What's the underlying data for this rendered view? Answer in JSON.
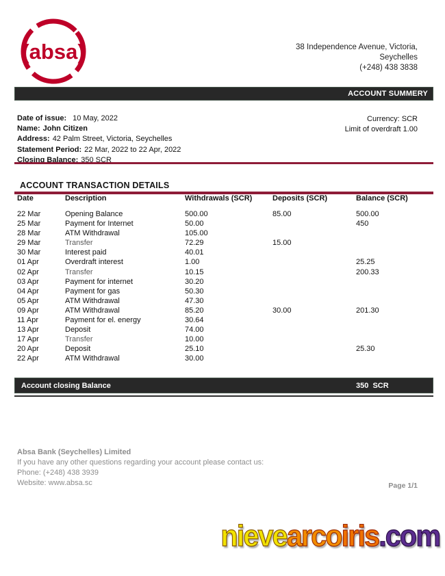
{
  "brand": {
    "logo_text": "(absa)",
    "logo_color": "#be0028"
  },
  "header": {
    "address_lines": [
      "38 Independence Avenue, Victoria,",
      "Seychelles",
      "(+248) 438 3838"
    ],
    "summary_bar_label": "ACCOUNT SUMMERY"
  },
  "summary": {
    "fields": [
      {
        "label": "Date of issue:",
        "value": "10 May, 2022",
        "bold_value": false,
        "wide_gap": true
      },
      {
        "label": "Name:",
        "value": "John Citizen",
        "bold_value": true,
        "wide_gap": false
      },
      {
        "label": "Address:",
        "value": "42 Palm Street, Victoria, Seychelles",
        "bold_value": false,
        "wide_gap": false
      },
      {
        "label": "Statement Period:",
        "value": "22 Mar, 2022 to 22 Apr, 2022",
        "bold_value": false,
        "wide_gap": false
      },
      {
        "label": "Closing Balance:",
        "value": "350 SCR",
        "bold_value": false,
        "wide_gap": false
      }
    ],
    "right_lines": [
      "Currency: SCR",
      "Limit of overdraft 1.00"
    ]
  },
  "transactions": {
    "title": "ACCOUNT TRANSACTION DETAILS",
    "columns": [
      "Date",
      "Description",
      "Withdrawals (SCR)",
      "Deposits (SCR)",
      "Balance (SCR)"
    ],
    "rows": [
      {
        "date": "22 Mar",
        "description": "Opening Balance",
        "withdrawal": "500.00",
        "deposit": "85.00",
        "balance": "500.00",
        "muted": false
      },
      {
        "date": "25 Mar",
        "description": "Payment for Internet",
        "withdrawal": "50.00",
        "deposit": "",
        "balance": "450",
        "muted": false
      },
      {
        "date": "28 Mar",
        "description": "ATM Withdrawal",
        "withdrawal": "105.00",
        "deposit": "",
        "balance": "",
        "muted": false
      },
      {
        "date": "29 Mar",
        "description": "Transfer",
        "withdrawal": "72.29",
        "deposit": "15.00",
        "balance": "",
        "muted": true
      },
      {
        "date": "30 Mar",
        "description": "Interest paid",
        "withdrawal": "40.01",
        "deposit": "",
        "balance": "",
        "muted": false
      },
      {
        "date": "01 Apr",
        "description": "Overdraft interest",
        "withdrawal": "1.00",
        "deposit": "",
        "balance": "25.25",
        "muted": false
      },
      {
        "date": "02 Apr",
        "description": "Transfer",
        "withdrawal": "10.15",
        "deposit": "",
        "balance": "200.33",
        "muted": true
      },
      {
        "date": "03 Apr",
        "description": "Payment for internet",
        "withdrawal": "30.20",
        "deposit": "",
        "balance": "",
        "muted": false
      },
      {
        "date": "04 Apr",
        "description": "Payment for gas",
        "withdrawal": "50.30",
        "deposit": "",
        "balance": "",
        "muted": false
      },
      {
        "date": "05 Apr",
        "description": "ATM Withdrawal",
        "withdrawal": "47.30",
        "deposit": "",
        "balance": "",
        "muted": false
      },
      {
        "date": "09 Apr",
        "description": "ATM Withdrawal",
        "withdrawal": "85.20",
        "deposit": "30.00",
        "balance": "201.30",
        "muted": false
      },
      {
        "date": "11 Apr",
        "description": "Payment for el. energy",
        "withdrawal": "30.64",
        "deposit": "",
        "balance": "",
        "muted": false
      },
      {
        "date": "13 Apr",
        "description": "Deposit",
        "withdrawal": "74.00",
        "deposit": "",
        "balance": "",
        "muted": false
      },
      {
        "date": "17 Apr",
        "description": "Transfer",
        "withdrawal": "10.00",
        "deposit": "",
        "balance": "",
        "muted": true
      },
      {
        "date": "20 Apr",
        "description": "Deposit",
        "withdrawal": "25.10",
        "deposit": "",
        "balance": "25.30",
        "muted": false
      },
      {
        "date": "22 Apr",
        "description": "ATM Withdrawal",
        "withdrawal": "30.00",
        "deposit": "",
        "balance": "",
        "muted": false
      }
    ],
    "closing_label": "Account closing Balance",
    "closing_value": "350  SCR"
  },
  "footer": {
    "bank_name": "Absa Bank (Seychelles) Limited",
    "contact_line": "If you have any other questions regarding your account please contact us:",
    "phone": "Phone: (+248) 438 3939",
    "website": "Website: www.absa.sc",
    "page": "Page 1/1"
  },
  "watermark": {
    "segments": [
      {
        "text": "nieve",
        "color": "#f2e300",
        "outline": "#8a5a00"
      },
      {
        "text": "arco",
        "color": "#f28c00",
        "outline": "#9c2e00"
      },
      {
        "text": "iris",
        "color": "#ee7200",
        "outline": "#9c2300"
      },
      {
        "text": ".com",
        "color": "#5b2d8f",
        "outline": "#2a0e45"
      }
    ]
  },
  "colors": {
    "brand_red": "#be0028",
    "rule_maroon": "#8e1c38",
    "bar_black": "#282828",
    "muted_text": "#5a5a5a",
    "footer_gray": "#8c8c8c"
  }
}
